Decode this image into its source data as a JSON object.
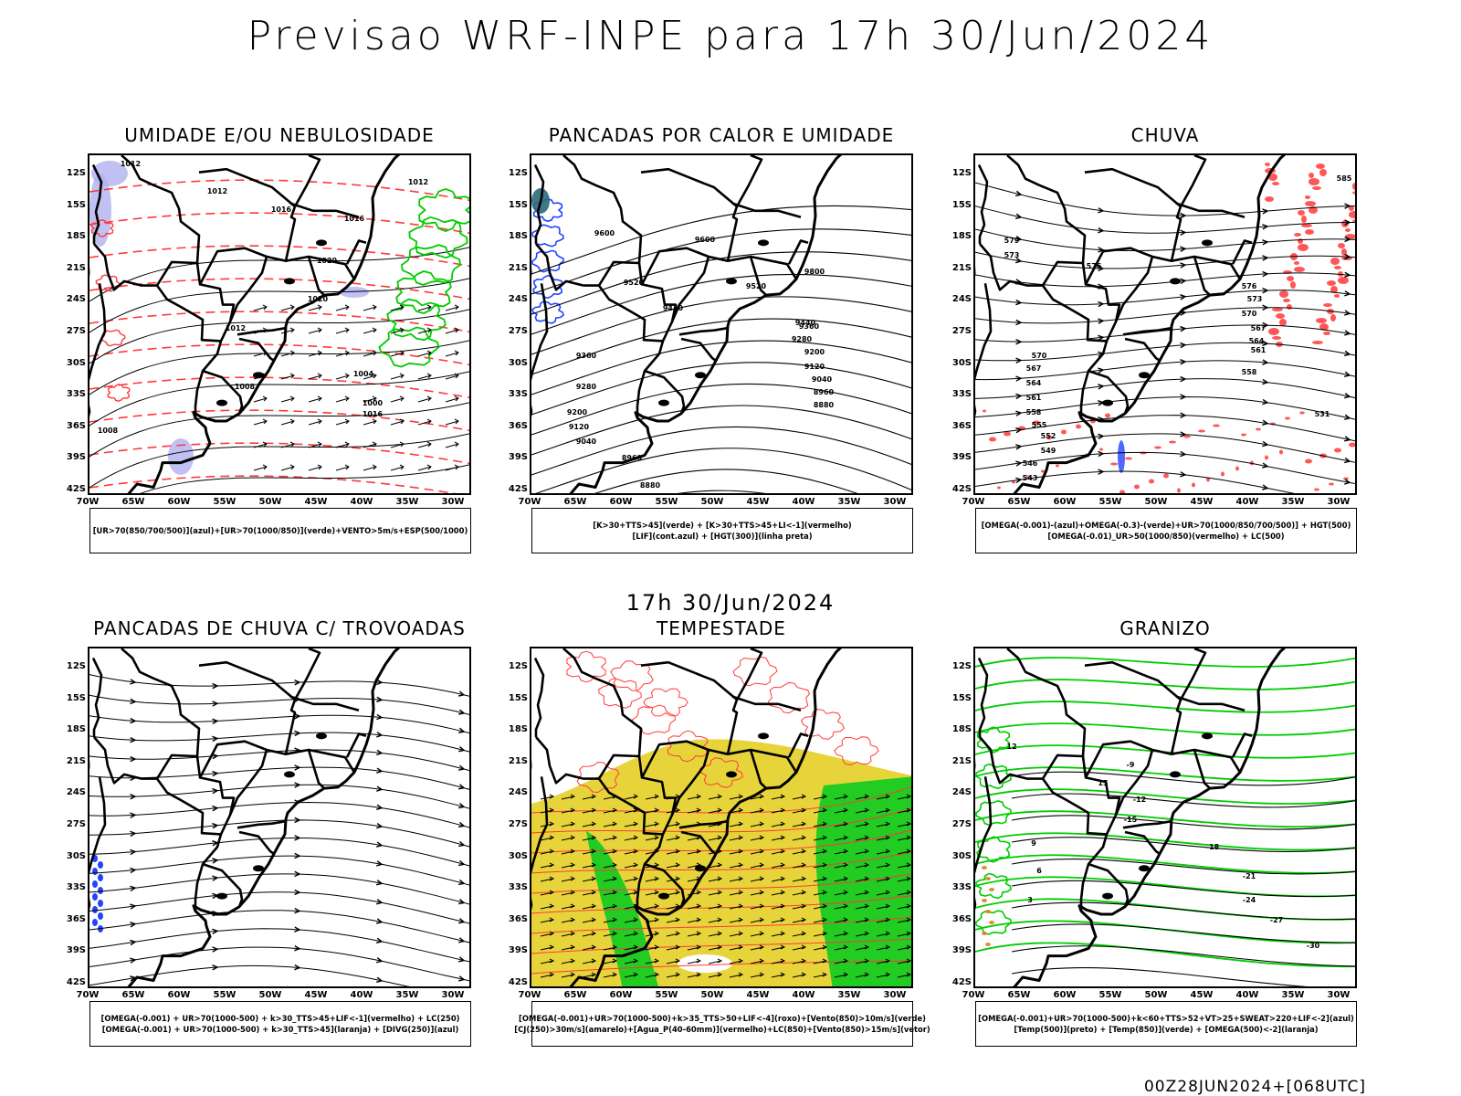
{
  "header": {
    "title": "Previsao WRF-INPE  para 17h 30/Jun/2024",
    "mid_time": "17h 30/Jun/2024",
    "footer_stamp": "00Z28JUN2024+[068UTC]"
  },
  "axes": {
    "lat_labels": [
      "12S",
      "15S",
      "18S",
      "21S",
      "24S",
      "27S",
      "30S",
      "33S",
      "36S",
      "39S",
      "42S"
    ],
    "lon_labels": [
      "70W",
      "65W",
      "60W",
      "55W",
      "50W",
      "45W",
      "40W",
      "35W",
      "30W"
    ]
  },
  "colors": {
    "black_isobar": "#000000",
    "red_contour": "#ff3a3a",
    "green_contour": "#00cc00",
    "blue_fill": "#2244ff",
    "lavender_fill": "#b0b0f0",
    "yellow_fill": "#e6d230",
    "green_fill": "#22cc22",
    "orange": "#e08020"
  },
  "panels": [
    {
      "title": "UMIDADE E/OU NEBULOSIDADE",
      "legend": [
        "[UR>70(850/700/500)](azul)+[UR>70(1000/850)](verde)+VENTO>5m/s+ESP(500/1000)"
      ],
      "contour_labels": [
        "1012",
        "1012",
        "1016",
        "1016",
        "1020",
        "1020",
        "1012",
        "1008",
        "1004",
        "1000",
        "1016",
        "1012",
        "1008"
      ]
    },
    {
      "title": "PANCADAS POR CALOR E UMIDADE",
      "legend": [
        "[K>30+TTS>45](verde) + [K>30+TTS>45+LI<-1](vermelho)",
        "[LIF](cont.azul) + [HGT(300)](linha preta)"
      ],
      "contour_labels": [
        "9600",
        "9600",
        "9520",
        "9440",
        "9440",
        "9360",
        "9280",
        "9200",
        "9120",
        "9040",
        "8960",
        "8880",
        "9800",
        "9520",
        "9360",
        "9280",
        "9200",
        "9120",
        "9040",
        "8960",
        "8880"
      ]
    },
    {
      "title": "CHUVA",
      "legend": [
        "[OMEGA(-0.001)-(azul)+OMEGA(-0.3)-(verde)+UR>70(1000/850/700/500)] + HGT(500)",
        "[OMEGA(-0.01)_UR>50(1000/850)(vermelho) + LC(500)"
      ],
      "contour_labels": [
        "585",
        "579",
        "576",
        "573",
        "570",
        "567",
        "564",
        "561",
        "558",
        "555",
        "552",
        "549",
        "546",
        "543",
        "576",
        "573",
        "570",
        "567",
        "564",
        "561",
        "558",
        "531"
      ]
    },
    {
      "title": "PANCADAS DE CHUVA C/ TROVOADAS",
      "legend": [
        "[OMEGA(-0.001) + UR>70(1000-500) + k>30_TTS>45+LIF<-1](vermelho) + LC(250)",
        "[OMEGA(-0.001) + UR>70(1000-500) + k>30_TTS>45](laranja) + [DIVG(250)](azul)"
      ],
      "contour_labels": []
    },
    {
      "title": "TEMPESTADE",
      "legend": [
        "[OMEGA(-0.001)+UR>70(1000-500)+k>35_TTS>50+LIF<-4](roxo)+[Vento(850)>10m/s](verde)",
        "[CJ(250)>30m/s](amarelo)+[Agua_P(40-60mm)](vermelho)+LC(850)+[Vento(850)>15m/s](vetor)"
      ],
      "contour_labels": []
    },
    {
      "title": "GRANIZO",
      "legend": [
        "[OMEGA(-0.001)+UR>70(1000-500)+k<60+TTS>52+VT>25+SWEAT>220+LIF<-2](azul)",
        "[Temp(500)](preto) + [Temp(850)](verde) + [OMEGA(500)<-2](laranja)"
      ],
      "contour_labels": [
        "-9",
        "-12",
        "-15",
        "-18",
        "-21",
        "-24",
        "-27",
        "-30",
        "3",
        "6",
        "9",
        "12",
        "15"
      ]
    }
  ]
}
